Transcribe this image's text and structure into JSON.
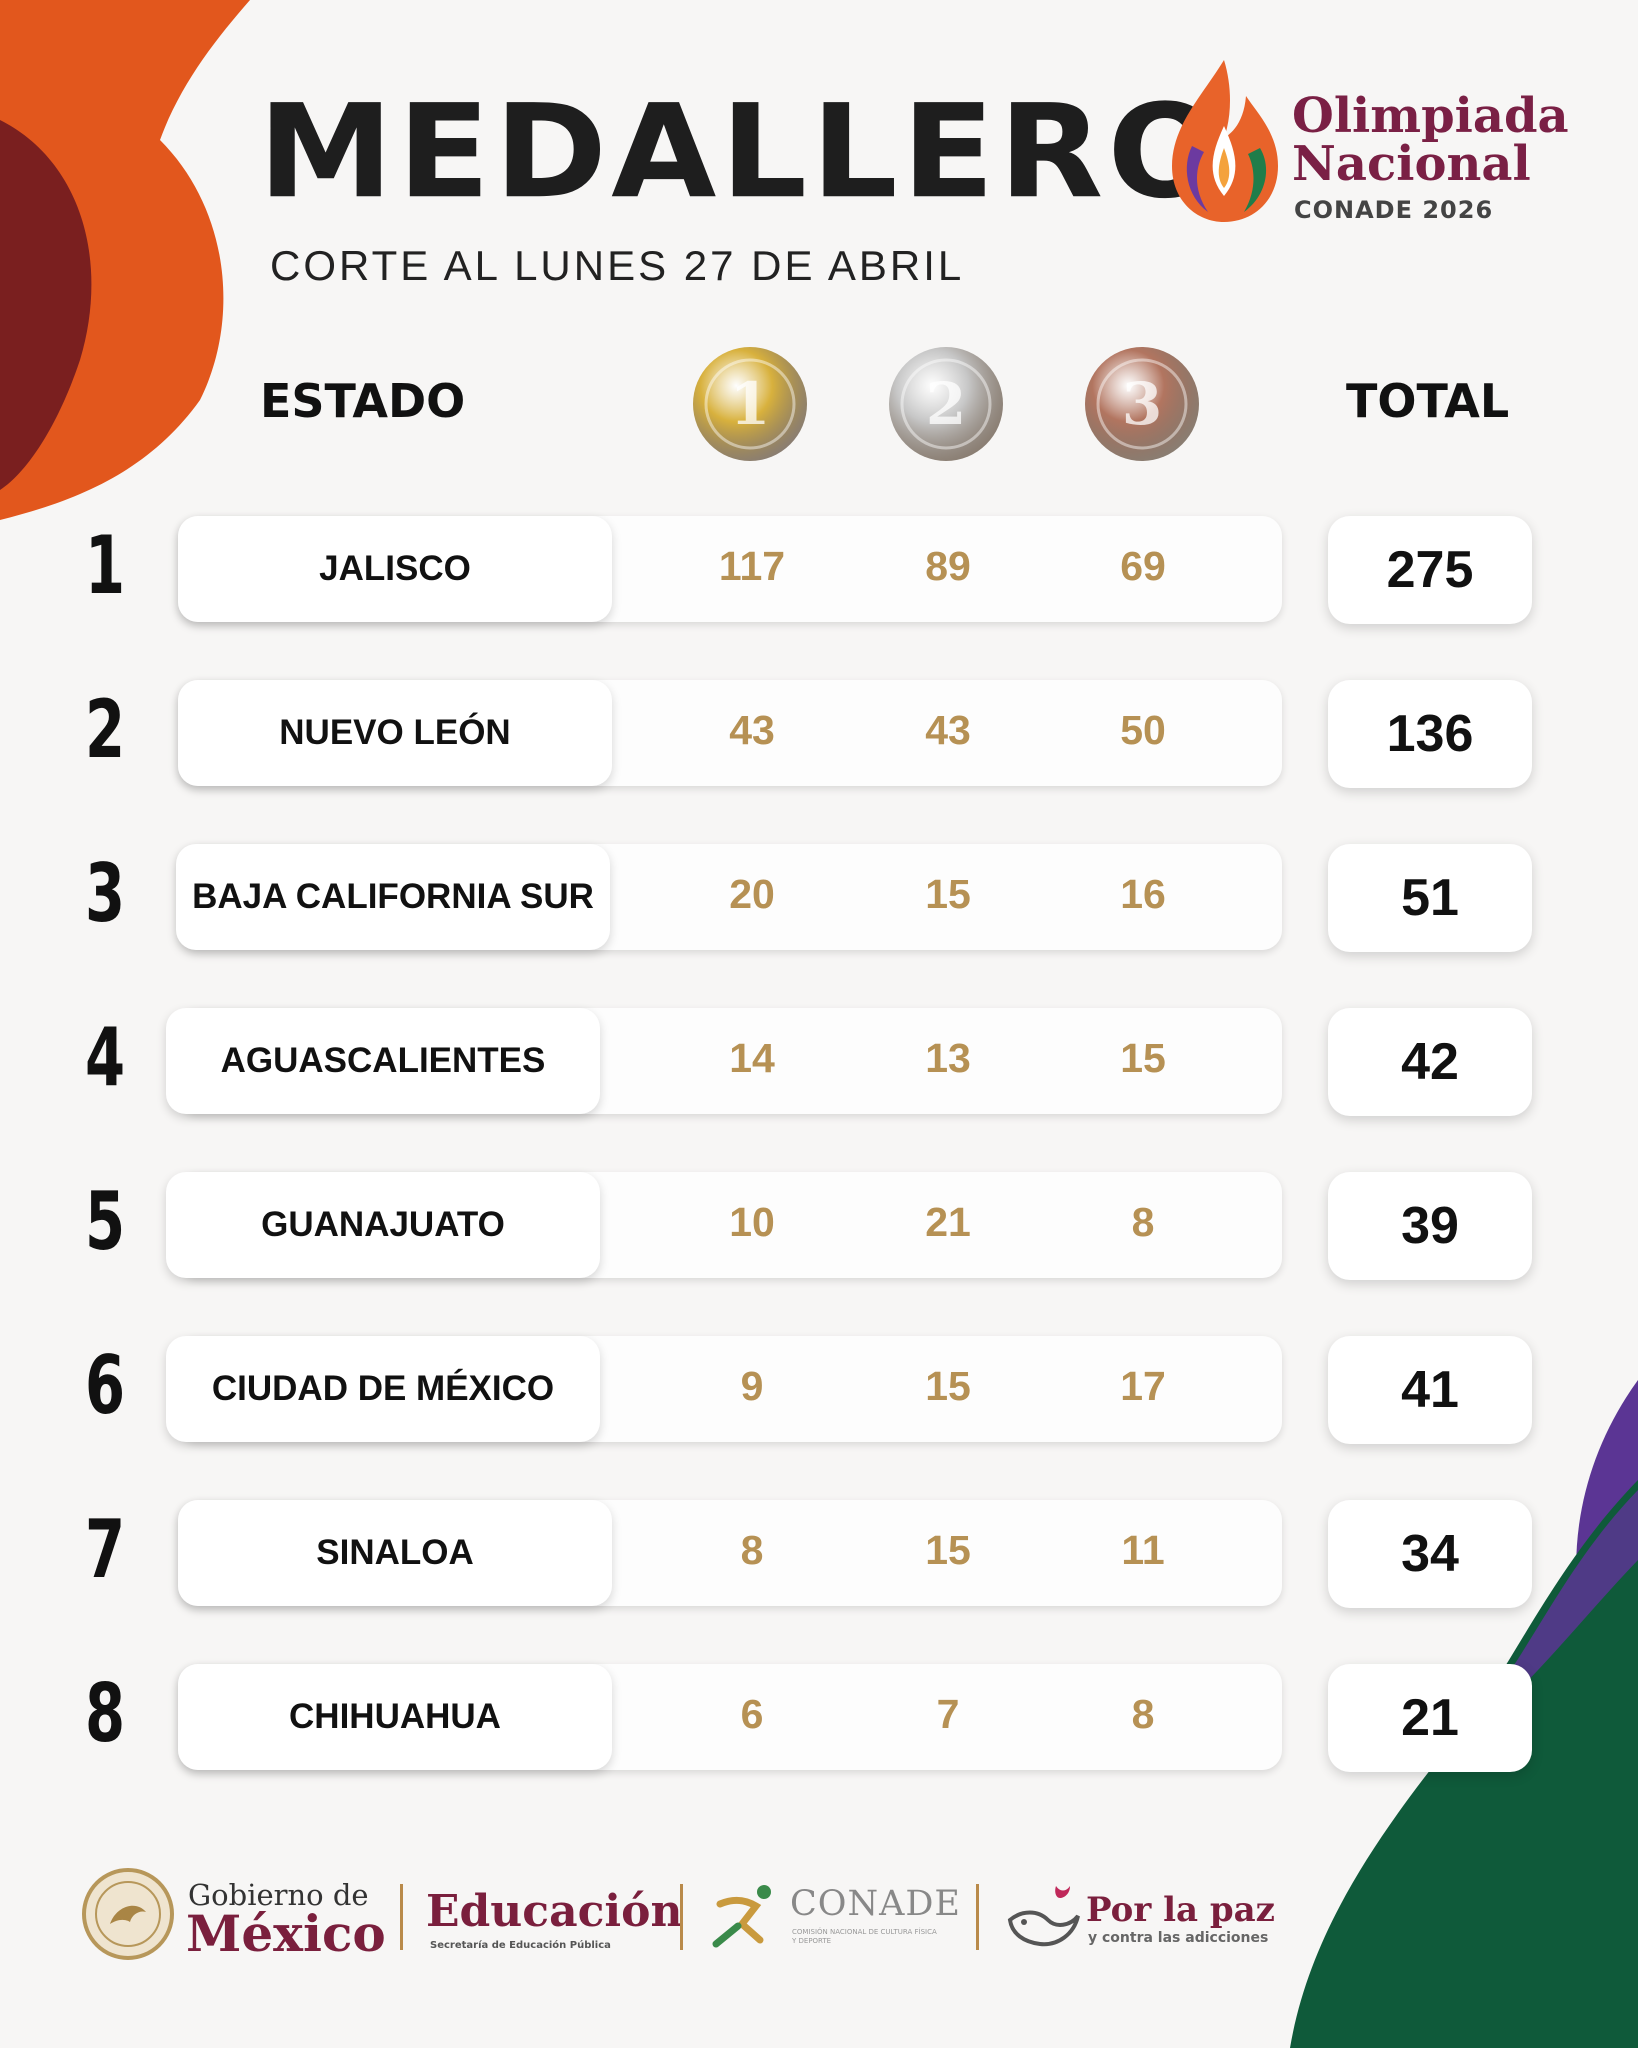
{
  "header": {
    "title": "MEDALLERO",
    "subtitle": "CORTE AL LUNES 27 DE ABRIL"
  },
  "logo": {
    "line1": "Olimpiada",
    "line2": "Nacional",
    "line3": "CONADE 2026"
  },
  "columns": {
    "state": "ESTADO",
    "total": "TOTAL",
    "medals": [
      {
        "number": "1",
        "color": "#d8b13d"
      },
      {
        "number": "2",
        "color": "#c7c7c7"
      },
      {
        "number": "3",
        "color": "#b27560"
      }
    ]
  },
  "rows": [
    {
      "rank": "1",
      "state": "JALISCO",
      "gold": "117",
      "silver": "89",
      "bronze": "69",
      "total": "275"
    },
    {
      "rank": "2",
      "state": "NUEVO LEÓN",
      "gold": "43",
      "silver": "43",
      "bronze": "50",
      "total": "136"
    },
    {
      "rank": "3",
      "state": "BAJA CALIFORNIA SUR",
      "gold": "20",
      "silver": "15",
      "bronze": "16",
      "total": "51"
    },
    {
      "rank": "4",
      "state": "AGUASCALIENTES",
      "gold": "14",
      "silver": "13",
      "bronze": "15",
      "total": "42"
    },
    {
      "rank": "5",
      "state": "GUANAJUATO",
      "gold": "10",
      "silver": "21",
      "bronze": "8",
      "total": "39"
    },
    {
      "rank": "6",
      "state": "CIUDAD DE MÉXICO",
      "gold": "9",
      "silver": "15",
      "bronze": "17",
      "total": "41"
    },
    {
      "rank": "7",
      "state": "SINALOA",
      "gold": "8",
      "silver": "15",
      "bronze": "11",
      "total": "34"
    },
    {
      "rank": "8",
      "state": "CHIHUAHUA",
      "gold": "6",
      "silver": "7",
      "bronze": "8",
      "total": "21"
    }
  ],
  "footer": {
    "gob_line1": "Gobierno de",
    "gob_line2": "México",
    "edu_title": "Educación",
    "edu_sub": "Secretaría de Educación Pública",
    "conade_title": "CONADE",
    "conade_sub": "COMISIÓN NACIONAL DE CULTURA FÍSICA Y DEPORTE",
    "paz_title": "Por la paz",
    "paz_sub": "y contra las adicciones"
  },
  "colors": {
    "accent_orange": "#e2571d",
    "accent_maroon": "#7a1f1f",
    "accent_green": "#0f5a3a",
    "accent_purple": "#5b3594",
    "medal_number_text": "#b69154"
  }
}
